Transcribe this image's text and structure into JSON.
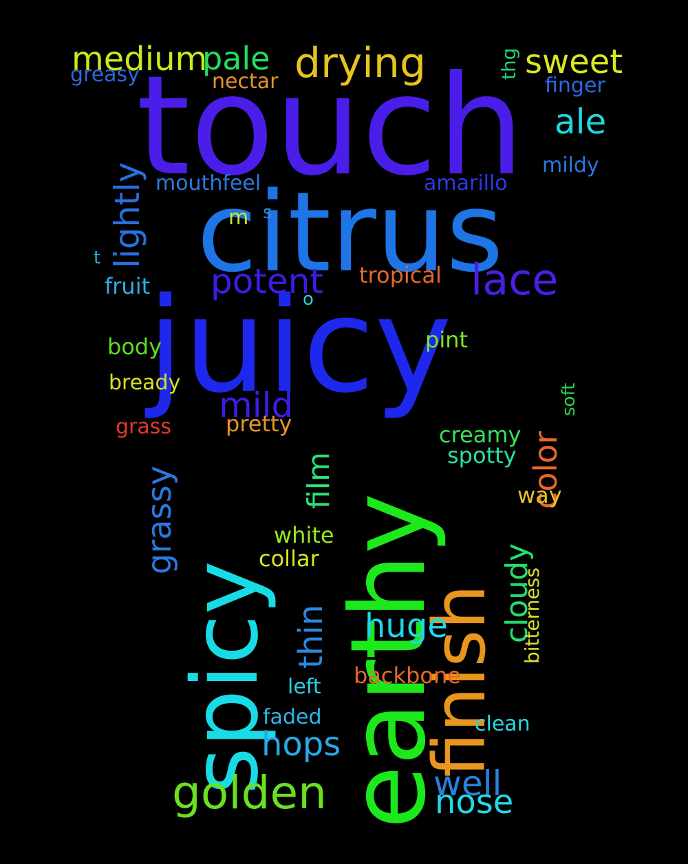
{
  "words": [
    {
      "text": "touch",
      "color": "#4a1ee8"
    },
    {
      "text": "citrus",
      "color": "#1f74e6"
    },
    {
      "text": "juicy",
      "color": "#1e28ec"
    },
    {
      "text": "earthy",
      "color": "#1ce81c"
    },
    {
      "text": "spicy",
      "color": "#19dbe5"
    },
    {
      "text": "finish",
      "color": "#e8961e"
    },
    {
      "text": "drying",
      "color": "#e5c41e"
    },
    {
      "text": "medium",
      "color": "#cce81e"
    },
    {
      "text": "pale",
      "color": "#22e05a"
    },
    {
      "text": "sweet",
      "color": "#d7e81e"
    },
    {
      "text": "greasy",
      "color": "#2a6ad8"
    },
    {
      "text": "nectar",
      "color": "#e8922a"
    },
    {
      "text": "thg",
      "color": "#22d07a"
    },
    {
      "text": "finger",
      "color": "#2a6ae0"
    },
    {
      "text": "ale",
      "color": "#1ed8e0"
    },
    {
      "text": "lightly",
      "color": "#2870e0"
    },
    {
      "text": "mildy",
      "color": "#2a78e0"
    },
    {
      "text": "mouthfeel",
      "color": "#2a7ae0"
    },
    {
      "text": "amarillo",
      "color": "#2a3ae8"
    },
    {
      "text": "m",
      "color": "#c8e82a"
    },
    {
      "text": "s",
      "color": "#2a8ae0"
    },
    {
      "text": "t",
      "color": "#2ab0e0"
    },
    {
      "text": "potent",
      "color": "#3a1ee8"
    },
    {
      "text": "lace",
      "color": "#4a1ee8"
    },
    {
      "text": "tropical",
      "color": "#e8682a"
    },
    {
      "text": "fruit",
      "color": "#2ab0e8"
    },
    {
      "text": "o",
      "color": "#2ad0e0"
    },
    {
      "text": "body",
      "color": "#5ae01e"
    },
    {
      "text": "pint",
      "color": "#7ae81e"
    },
    {
      "text": "bready",
      "color": "#d8e01e"
    },
    {
      "text": "mild",
      "color": "#3a1ee8"
    },
    {
      "text": "color",
      "color": "#e8682a"
    },
    {
      "text": "soft",
      "color": "#2ad04a"
    },
    {
      "text": "grass",
      "color": "#e03a2a"
    },
    {
      "text": "pretty",
      "color": "#e8962a"
    },
    {
      "text": "creamy",
      "color": "#3ae05a"
    },
    {
      "text": "spotty",
      "color": "#2ae0a0"
    },
    {
      "text": "grassy",
      "color": "#2a78e0"
    },
    {
      "text": "film",
      "color": "#2ae07a"
    },
    {
      "text": "way",
      "color": "#e8c02a"
    },
    {
      "text": "white",
      "color": "#9ae81e"
    },
    {
      "text": "collar",
      "color": "#d8e81e"
    },
    {
      "text": "cloudy",
      "color": "#22e06a"
    },
    {
      "text": "bitterness",
      "color": "#d8e02a"
    },
    {
      "text": "huge",
      "color": "#1ed8e8"
    },
    {
      "text": "thin",
      "color": "#2a88e0"
    },
    {
      "text": "backbone",
      "color": "#e8682a"
    },
    {
      "text": "left",
      "color": "#2ad0e0"
    },
    {
      "text": "faded",
      "color": "#2ab8e8"
    },
    {
      "text": "clean",
      "color": "#2ad8e0"
    },
    {
      "text": "hops",
      "color": "#2aa8e8"
    },
    {
      "text": "golden",
      "color": "#6ae01e"
    },
    {
      "text": "well",
      "color": "#2a80e0"
    },
    {
      "text": "nose",
      "color": "#22d8e8"
    }
  ]
}
